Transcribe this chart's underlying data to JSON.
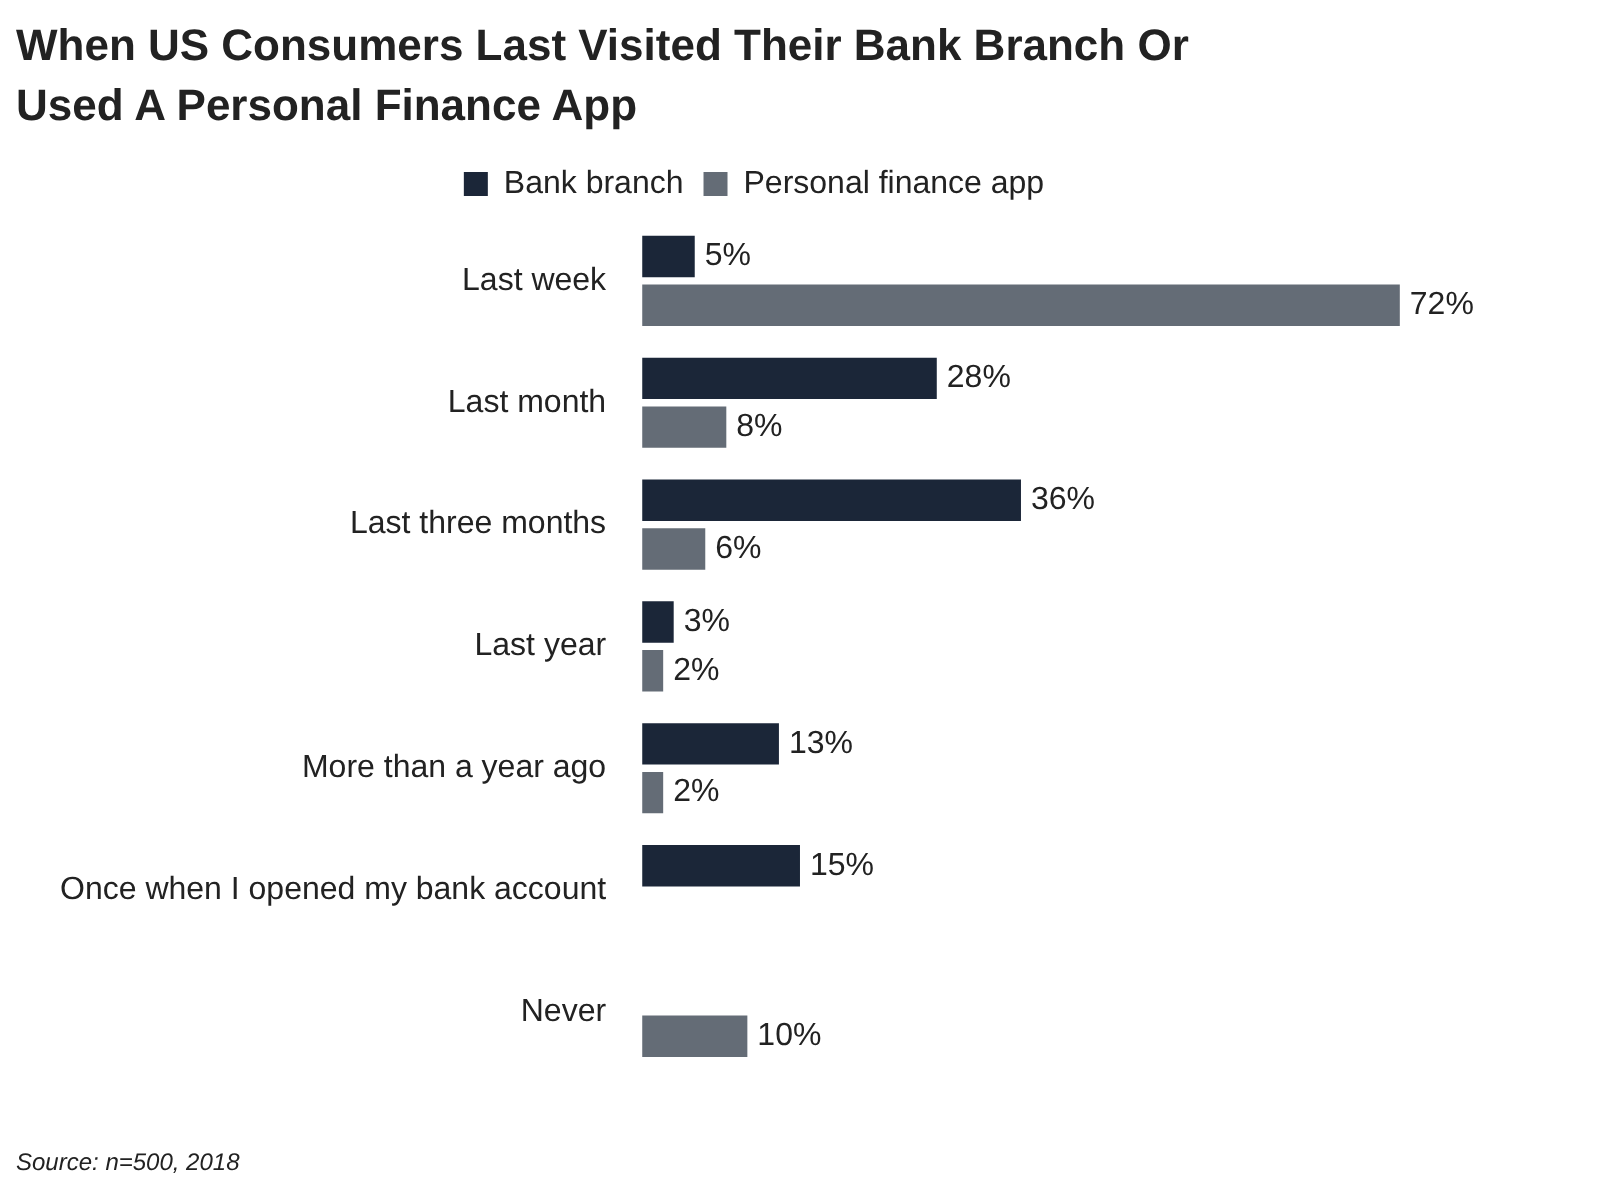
{
  "chart_data": {
    "type": "bar",
    "orientation": "horizontal",
    "title": "When US Consumers Last Visited Their Bank Branch Or Used A Personal Finance App",
    "categories": [
      "Last week",
      "Last month",
      "Last three months",
      "Last year",
      "More than a year ago",
      "Once when I opened my bank account",
      "Never"
    ],
    "series": [
      {
        "name": "Bank branch",
        "color": "#1b2638",
        "values": [
          5,
          28,
          36,
          3,
          13,
          15,
          null
        ],
        "value_labels": [
          "5%",
          "28%",
          "36%",
          "3%",
          "13%",
          "15%",
          null
        ]
      },
      {
        "name": "Personal finance app",
        "color": "#646c76",
        "values": [
          72,
          8,
          6,
          2,
          2,
          null,
          10
        ],
        "value_labels": [
          "72%",
          "8%",
          "6%",
          "2%",
          "2%",
          null,
          "10%"
        ]
      }
    ],
    "legend": "top",
    "grid": false,
    "annotations": [
      "Source: n=500, 2018"
    ]
  }
}
